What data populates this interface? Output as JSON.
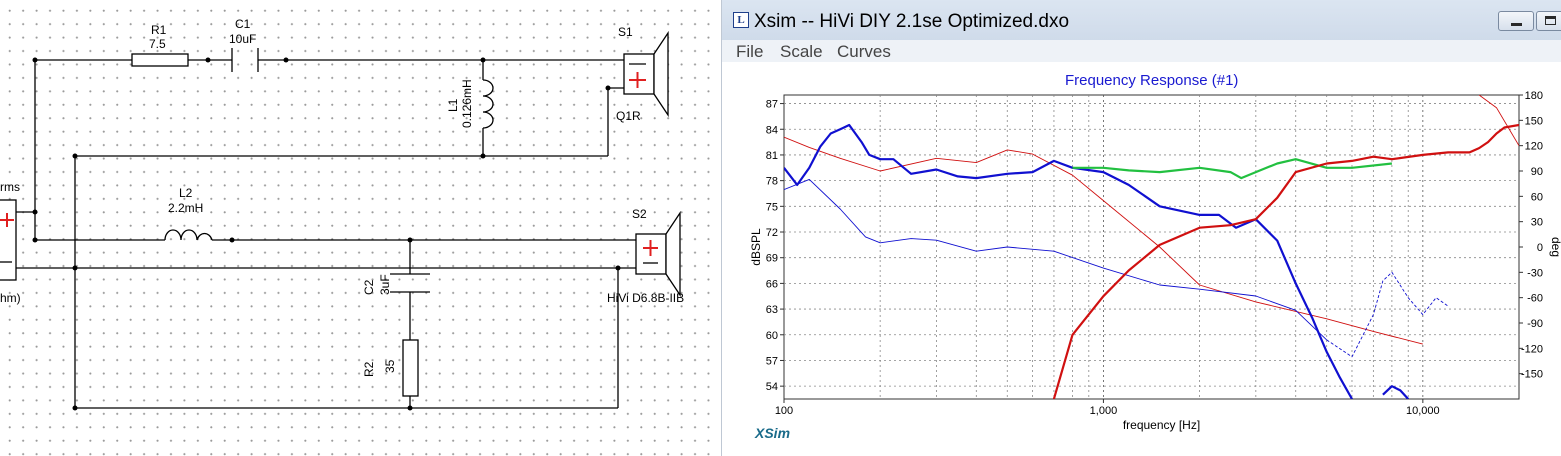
{
  "schematic": {
    "r1": {
      "name": "R1",
      "value": "7.5"
    },
    "c1": {
      "name": "C1",
      "value": "10uF"
    },
    "l1": {
      "name": "L1",
      "value": "0.126mH"
    },
    "s1": {
      "name": "S1",
      "model": "Q1R"
    },
    "l2": {
      "name": "L2",
      "value": "2.2mH"
    },
    "s2": {
      "name": "S2",
      "model": "HiVi D6.8B-IIB"
    },
    "c2": {
      "name": "C2",
      "value": "3uF"
    },
    "r2": {
      "name": "R2",
      "value": "35"
    },
    "source": {
      "top_fragment": "rms",
      "bottom_fragment": "hm)"
    }
  },
  "window": {
    "title": "Xsim -- HiVi DIY 2.1se Optimized.dxo",
    "icon_letter": "L",
    "menu": [
      "File",
      "Scale",
      "Curves"
    ],
    "logo": "XSim"
  },
  "chart_data": {
    "type": "line",
    "title": "Frequency Response (#1)",
    "xlabel": "frequency [Hz]",
    "ylabel": "dBSPL",
    "y2label": "deg",
    "xscale": "log",
    "xlim": [
      100,
      20000
    ],
    "ylim": [
      52.5,
      88
    ],
    "y2lim": [
      -180,
      180
    ],
    "x_tick_labels": [
      "100",
      "1,000",
      "10,000"
    ],
    "y_ticks": [
      87,
      84,
      81,
      78,
      75,
      72,
      69,
      66,
      63,
      60,
      57,
      54
    ],
    "y2_ticks": [
      180,
      150,
      120,
      90,
      60,
      30,
      0,
      -30,
      -60,
      -90,
      -120,
      -150
    ],
    "grid": "dotted",
    "colors": {
      "woofer": "#1010d0",
      "tweeter": "#d01010",
      "sum": "#22c040"
    },
    "series": [
      {
        "name": "woofer SPL",
        "x": [
          100,
          110,
          120,
          130,
          140,
          150,
          160,
          175,
          185,
          200,
          220,
          250,
          300,
          350,
          400,
          500,
          600,
          700,
          800,
          1000,
          1200,
          1500,
          2000,
          2300,
          2600,
          3000,
          3500,
          4000,
          4500,
          5000,
          5500,
          6000
        ],
        "values": [
          79.5,
          77.5,
          79.5,
          82,
          83.5,
          84,
          84.5,
          82.5,
          81,
          80.5,
          80.5,
          78.8,
          79.3,
          78.5,
          78.3,
          78.8,
          79,
          80.3,
          79.5,
          79,
          77.5,
          75,
          74,
          74,
          72.5,
          73.5,
          71,
          66,
          62,
          58,
          55,
          52.5
        ]
      },
      {
        "name": "woofer SPL (second band)",
        "x": [
          7500,
          8000,
          8500,
          9000
        ],
        "values": [
          53,
          54,
          53.5,
          52.5
        ]
      },
      {
        "name": "tweeter SPL",
        "x": [
          700,
          800,
          1000,
          1200,
          1500,
          2000,
          2500,
          3000,
          3500,
          4000,
          5000,
          6000,
          7000,
          8000,
          10000,
          12000,
          14000,
          15000,
          16000,
          17000,
          18000,
          20000
        ],
        "values": [
          52.5,
          60,
          64.5,
          67.5,
          70.5,
          72.5,
          72.8,
          73.5,
          76,
          79,
          80,
          80.3,
          80.8,
          80.5,
          81,
          81.3,
          81.3,
          81.8,
          82.5,
          83.5,
          84.2,
          84.5
        ]
      },
      {
        "name": "summed SPL",
        "x": [
          800,
          1000,
          1200,
          1500,
          2000,
          2500,
          2700,
          3000,
          3500,
          4000,
          5000,
          6000,
          8000
        ],
        "values": [
          79.5,
          79.5,
          79.2,
          79,
          79.5,
          79,
          78.3,
          79,
          80,
          80.5,
          79.5,
          79.5,
          80
        ]
      },
      {
        "name": "woofer phase",
        "x": [
          100,
          120,
          150,
          180,
          200,
          250,
          300,
          400,
          500,
          700,
          1000,
          1500,
          2000,
          3000,
          4000,
          5000,
          6000,
          7000,
          7500,
          8000,
          9000,
          10000,
          11000,
          12000
        ],
        "values": [
          68,
          80,
          45,
          12,
          5,
          10,
          8,
          -5,
          0,
          -5,
          -25,
          -45,
          -50,
          -58,
          -75,
          -110,
          -130,
          -80,
          -40,
          -30,
          -60,
          -80,
          -60,
          -70
        ]
      },
      {
        "name": "tweeter phase",
        "x": [
          100,
          120,
          150,
          200,
          300,
          400,
          500,
          600,
          800,
          1000,
          1500,
          2000,
          3000,
          5000,
          7000,
          10000,
          13000,
          15000,
          17000,
          20000
        ],
        "values": [
          130,
          118,
          105,
          90,
          105,
          100,
          115,
          110,
          85,
          55,
          0,
          -45,
          -65,
          -85,
          -100,
          -115,
          -140,
          180,
          165,
          120
        ]
      }
    ]
  }
}
